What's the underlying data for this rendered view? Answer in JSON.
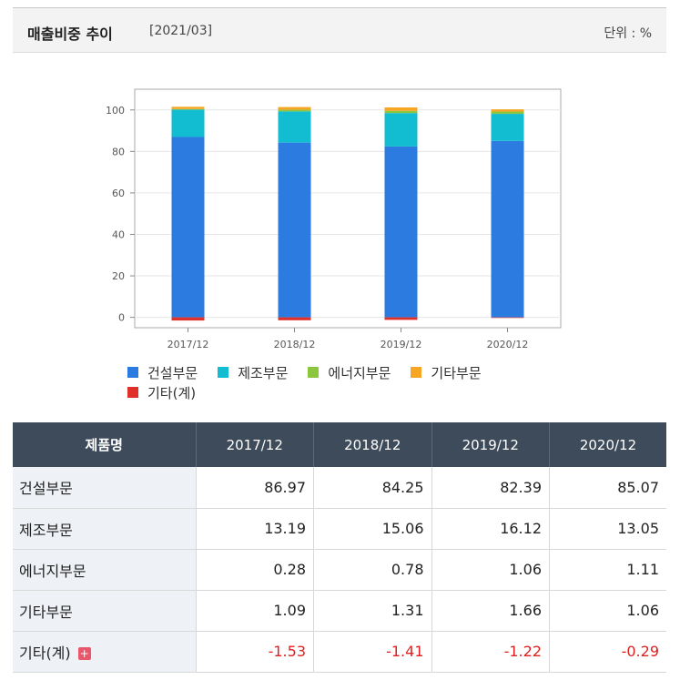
{
  "header": {
    "title": "매출비중 추이",
    "period": "[2021/03]",
    "unit": "단위 : %"
  },
  "colors": {
    "construction": "#2c7be0",
    "manufacturing": "#12bcd1",
    "energy": "#8cc63e",
    "other": "#f6a623",
    "other_total": "#e0302a"
  },
  "chart_data": {
    "type": "bar",
    "stacked": true,
    "categories": [
      "2017/12",
      "2018/12",
      "2019/12",
      "2020/12"
    ],
    "ylim": [
      -5,
      110
    ],
    "yticks": [
      0,
      20,
      40,
      60,
      80,
      100
    ],
    "grid": true,
    "legend_position": "bottom",
    "series": [
      {
        "name": "건설부문",
        "values": [
          86.97,
          84.25,
          82.39,
          85.07
        ],
        "color": "#2c7be0"
      },
      {
        "name": "제조부문",
        "values": [
          13.19,
          15.06,
          16.12,
          13.05
        ],
        "color": "#12bcd1"
      },
      {
        "name": "에너지부문",
        "values": [
          0.28,
          0.78,
          1.06,
          1.11
        ],
        "color": "#8cc63e"
      },
      {
        "name": "기타부문",
        "values": [
          1.09,
          1.31,
          1.66,
          1.06
        ],
        "color": "#f6a623"
      },
      {
        "name": "기타(계)",
        "values": [
          -1.53,
          -1.41,
          -1.22,
          -0.29
        ],
        "color": "#e0302a"
      }
    ]
  },
  "table": {
    "header_name": "제품명",
    "rows": [
      {
        "name": "건설부문",
        "values": [
          "86.97",
          "84.25",
          "82.39",
          "85.07"
        ]
      },
      {
        "name": "제조부문",
        "values": [
          "13.19",
          "15.06",
          "16.12",
          "13.05"
        ]
      },
      {
        "name": "에너지부문",
        "values": [
          "0.28",
          "0.78",
          "1.06",
          "1.11"
        ]
      },
      {
        "name": "기타부문",
        "values": [
          "1.09",
          "1.31",
          "1.66",
          "1.06"
        ]
      },
      {
        "name": "기타(계)",
        "values": [
          "-1.53",
          "-1.41",
          "-1.22",
          "-0.29"
        ],
        "negative": true,
        "expandable": true
      }
    ]
  }
}
